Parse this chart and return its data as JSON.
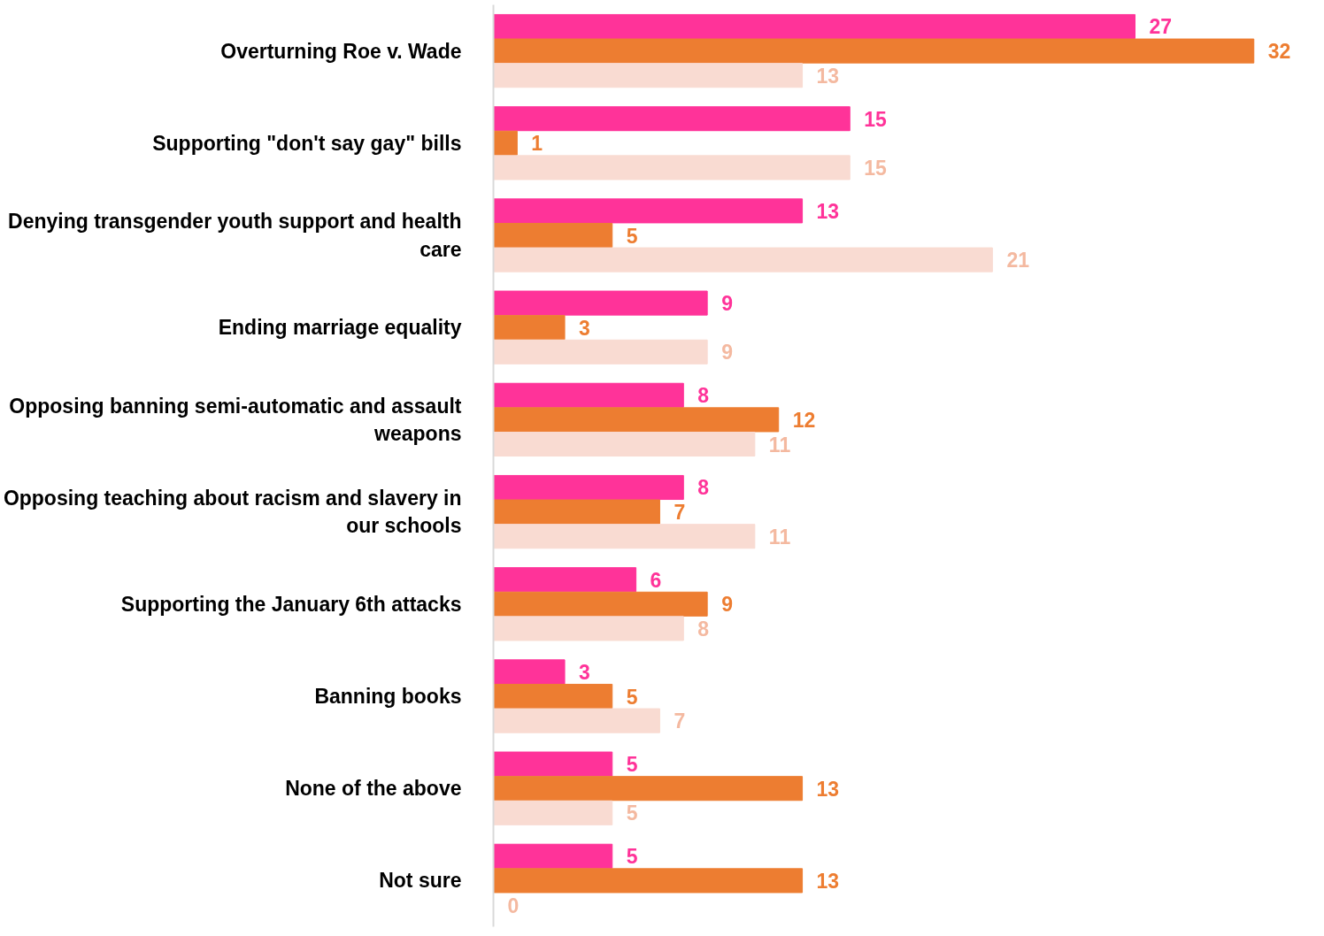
{
  "chart_data": {
    "type": "bar",
    "orientation": "horizontal",
    "data_labels": true,
    "grid": false,
    "categories": [
      "Overturning Roe v. Wade",
      "Supporting \"don't say gay\" bills",
      "Denying transgender youth support and health care",
      "Ending marriage equality",
      "Opposing banning semi-automatic and assault weapons",
      "Opposing teaching about racism and slavery in our schools",
      "Supporting the January 6th attacks",
      "Banning books",
      "None of the above",
      "Not sure"
    ],
    "series": [
      {
        "color": "#ff3399",
        "values": [
          27,
          15,
          13,
          9,
          8,
          8,
          6,
          3,
          5,
          5
        ]
      },
      {
        "color": "#ed7d31",
        "values": [
          32,
          1,
          5,
          3,
          12,
          7,
          9,
          5,
          13,
          13
        ]
      },
      {
        "color": "#f9dbd2",
        "values": [
          13,
          15,
          21,
          9,
          11,
          11,
          8,
          7,
          5,
          0
        ]
      }
    ]
  }
}
